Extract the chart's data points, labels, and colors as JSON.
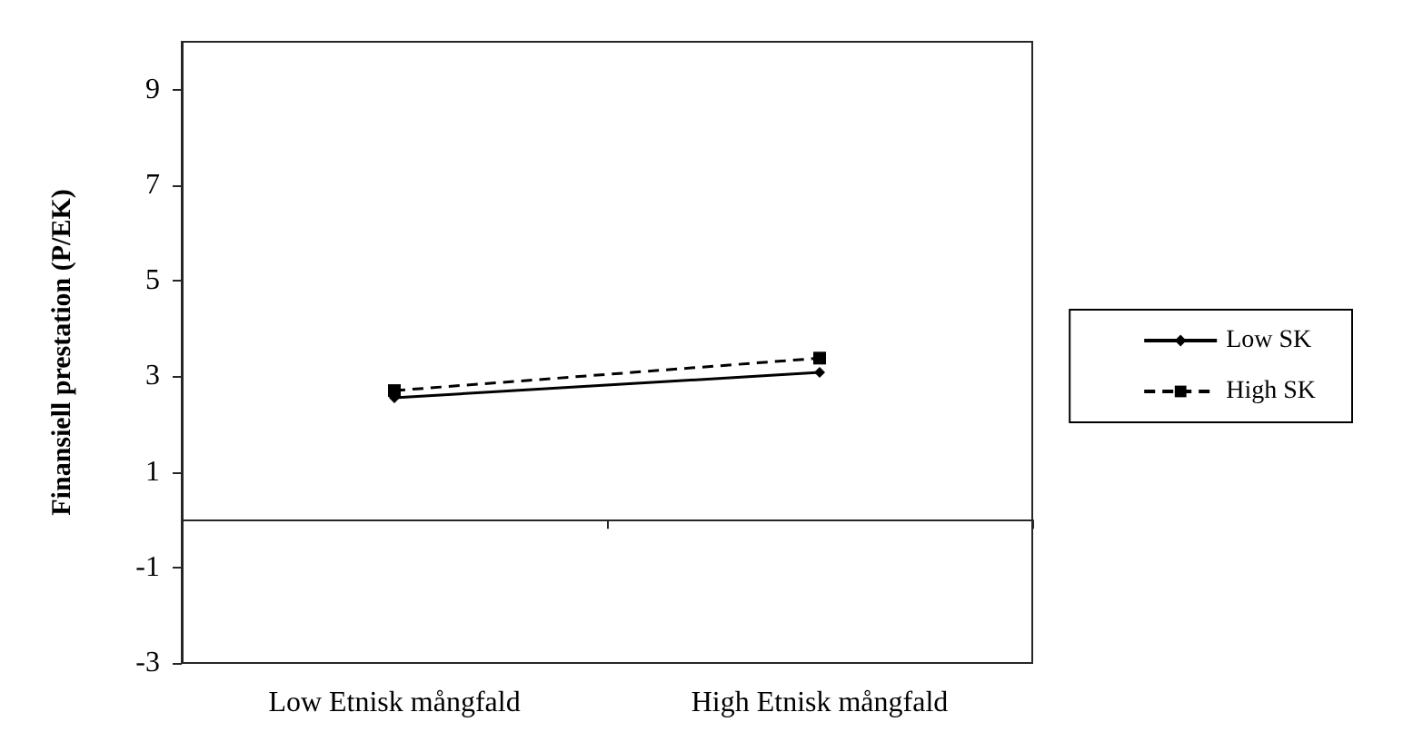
{
  "chart_data": {
    "type": "line",
    "ylabel": "Finansiell prestation (P/EK)",
    "categories": [
      "Low Etnisk mångfald",
      "High Etnisk mångfald"
    ],
    "series": [
      {
        "name": "Low SK",
        "color": "#000000",
        "values": [
          2.55,
          3.08
        ],
        "marker": "diamond",
        "line_style": "solid"
      },
      {
        "name": "High SK",
        "color": "#000000",
        "values": [
          2.7,
          3.38
        ],
        "marker": "square",
        "line_style": "dashed"
      }
    ],
    "ylim": [
      -3,
      10
    ],
    "yticks": [
      -3,
      -1,
      1,
      3,
      5,
      7,
      9
    ],
    "grid": false,
    "legend": "right"
  }
}
